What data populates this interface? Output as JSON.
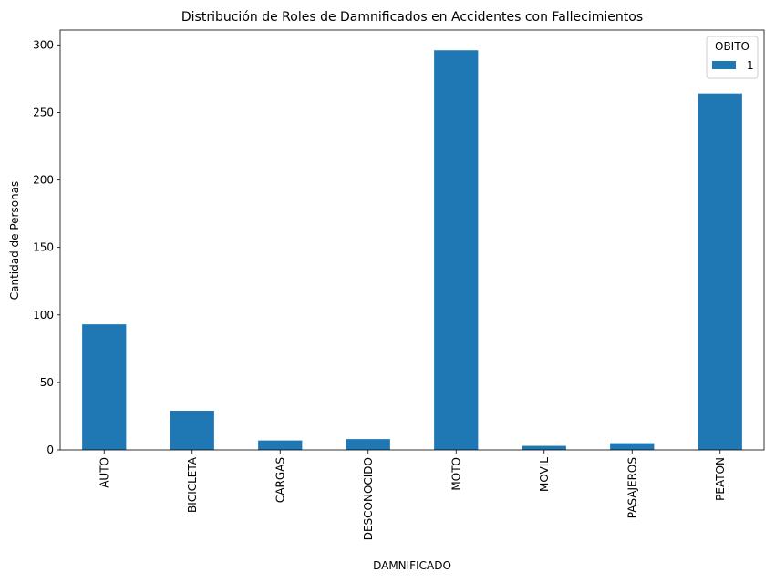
{
  "chart_data": {
    "type": "bar",
    "title": "Distribución de Roles de Damnificados en Accidentes con Fallecimientos",
    "xlabel": "DAMNIFICADO",
    "ylabel": "Cantidad de Personas",
    "categories": [
      "AUTO",
      "BICICLETA",
      "CARGAS",
      "DESCONOCIDO",
      "MOTO",
      "MOVIL",
      "PASAJEROS",
      "PEATON"
    ],
    "series": [
      {
        "name": "1",
        "values": [
          93,
          29,
          7,
          8,
          296,
          3,
          5,
          264
        ]
      }
    ],
    "ylim": [
      0,
      311
    ],
    "yticks": [
      0,
      50,
      100,
      150,
      200,
      250,
      300
    ],
    "legend": {
      "title": "OBITO",
      "position": "top-right"
    },
    "grid": false,
    "colors": {
      "bar": "#1f77b4"
    }
  }
}
